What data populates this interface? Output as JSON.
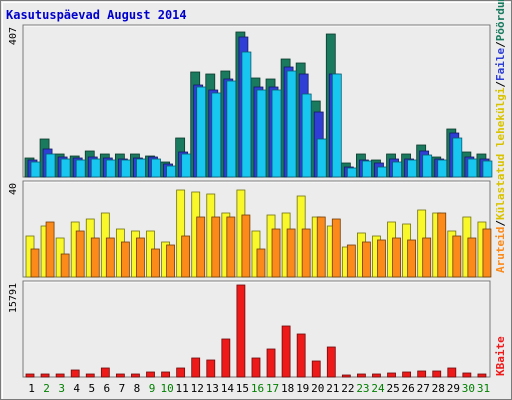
{
  "title": "Kasutuspäevad August 2014",
  "chart_data": [
    {
      "type": "bar",
      "panel": "top",
      "ytick_label": "407",
      "ylim": [
        0,
        407
      ],
      "categories": [
        "1",
        "2",
        "3",
        "4",
        "5",
        "6",
        "7",
        "8",
        "9",
        "10",
        "11",
        "12",
        "13",
        "14",
        "15",
        "16",
        "17",
        "18",
        "19",
        "20",
        "21",
        "22",
        "23",
        "24",
        "25",
        "26",
        "27",
        "28",
        "29",
        "30",
        "31"
      ],
      "series": [
        {
          "name": "Pöördumisi",
          "color": "#1a7a5e",
          "values": [
            52,
            105,
            62,
            58,
            72,
            62,
            62,
            62,
            58,
            42,
            108,
            288,
            282,
            292,
            400,
            272,
            270,
            324,
            314,
            210,
            394,
            38,
            62,
            48,
            62,
            62,
            88,
            54,
            132,
            68,
            62
          ]
        },
        {
          "name": "Faile",
          "color": "#2f3fd6",
          "values": [
            46,
            76,
            54,
            52,
            56,
            52,
            50,
            52,
            54,
            36,
            70,
            252,
            238,
            270,
            384,
            248,
            248,
            302,
            284,
            178,
            284,
            28,
            46,
            38,
            50,
            50,
            72,
            50,
            120,
            54,
            50
          ]
        },
        {
          "name": "Külastatud lehekülgi",
          "color": "#18c7f0",
          "values": [
            42,
            64,
            50,
            48,
            50,
            48,
            46,
            50,
            50,
            30,
            62,
            248,
            232,
            264,
            344,
            240,
            240,
            292,
            228,
            104,
            283,
            24,
            44,
            28,
            40,
            46,
            60,
            46,
            106,
            50,
            44
          ]
        }
      ]
    },
    {
      "type": "bar",
      "panel": "middle",
      "ytick_label": "40",
      "ylim": [
        0,
        40
      ],
      "categories": [
        "1",
        "2",
        "3",
        "4",
        "5",
        "6",
        "7",
        "8",
        "9",
        "10",
        "11",
        "12",
        "13",
        "14",
        "15",
        "16",
        "17",
        "18",
        "19",
        "20",
        "21",
        "22",
        "23",
        "24",
        "25",
        "26",
        "27",
        "28",
        "29",
        "30",
        "31"
      ],
      "series": [
        {
          "name": "Külastatud lehekülgi",
          "color": "#f8f82a",
          "values": [
            18,
            22,
            17,
            24,
            25,
            28,
            21,
            20,
            20,
            15,
            38,
            37,
            36,
            28,
            38,
            20,
            27,
            28,
            35,
            26,
            22,
            13,
            19,
            18,
            24,
            23,
            29,
            28,
            20,
            26,
            24
          ]
        },
        {
          "name": "Aruteid",
          "color": "#fb8a1a",
          "values": [
            12,
            24,
            10,
            20,
            17,
            17,
            15,
            17,
            12,
            14,
            18,
            26,
            26,
            26,
            27,
            12,
            21,
            21,
            21,
            26,
            25,
            14,
            15,
            16,
            17,
            16,
            17,
            28,
            18,
            17,
            21
          ]
        }
      ]
    },
    {
      "type": "bar",
      "panel": "bottom",
      "ytick_label": "15791",
      "ylim": [
        0,
        15791
      ],
      "categories": [
        "1",
        "2",
        "3",
        "4",
        "5",
        "6",
        "7",
        "8",
        "9",
        "10",
        "11",
        "12",
        "13",
        "14",
        "15",
        "16",
        "17",
        "18",
        "19",
        "20",
        "21",
        "22",
        "23",
        "24",
        "25",
        "26",
        "27",
        "28",
        "29",
        "30",
        "31"
      ],
      "series": [
        {
          "name": "KBaite",
          "color": "#ee1a1a",
          "values": [
            600,
            600,
            600,
            1200,
            500,
            1500,
            500,
            500,
            800,
            900,
            1500,
            3200,
            3000,
            6500,
            15791,
            3200,
            4800,
            8700,
            7400,
            2700,
            5200,
            350,
            450,
            450,
            650,
            800,
            1100,
            1100,
            1500,
            750,
            600
          ]
        }
      ]
    }
  ],
  "legend": {
    "bytes": "KBaite",
    "visits": "Aruteid",
    "pages": "Külastatud lehekülgi",
    "files": "Faile",
    "hits": "Pöördumisi",
    "sep": "/"
  },
  "weekend_days": [
    "2",
    "3",
    "9",
    "10",
    "16",
    "17",
    "23",
    "24",
    "30",
    "31"
  ],
  "colors": {
    "day_normal": "#000000",
    "day_weekend": "#008000",
    "title": "#0000cc",
    "legend_pages": "#d9c300"
  }
}
